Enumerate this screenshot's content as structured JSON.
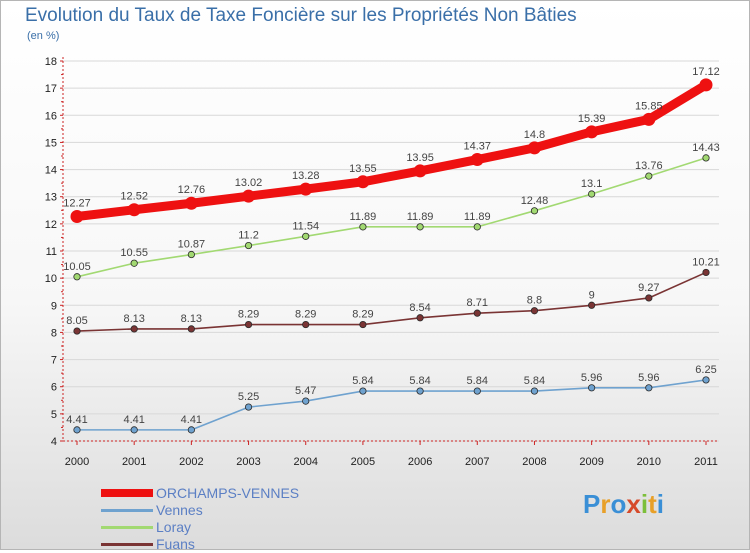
{
  "title": "Evolution du Taux de Taxe Foncière sur les Propriétés Non Bâties",
  "unit_label": "(en %)",
  "brand": {
    "letters": [
      "P",
      "r",
      "o",
      "x",
      "i",
      "t",
      "i"
    ],
    "colors": [
      "#3a8fd6",
      "#e8a028",
      "#3a8fd6",
      "#d64a2a",
      "#7cbf3a",
      "#e8a028",
      "#3a8fd6"
    ]
  },
  "chart_data": {
    "type": "line",
    "title": "Evolution du Taux de Taxe Foncière sur les Propriétés Non Bâties",
    "ylabel": "(en %)",
    "xlabel": "",
    "ylim": [
      4,
      18
    ],
    "yticks": [
      "4",
      "5",
      "6",
      "7",
      "8",
      "9",
      "10",
      "11",
      "12",
      "13",
      "14",
      "15",
      "16",
      "17",
      "18"
    ],
    "categories": [
      "2000",
      "2001",
      "2002",
      "2003",
      "2004",
      "2005",
      "2006",
      "2007",
      "2008",
      "2009",
      "2010",
      "2011"
    ],
    "series": [
      {
        "name": "ORCHAMPS-VENNES",
        "color": "#ee1111",
        "values": [
          12.27,
          12.52,
          12.76,
          13.02,
          13.28,
          13.55,
          13.95,
          14.37,
          14.8,
          15.39,
          15.85,
          17.12
        ],
        "labels": [
          "12.27",
          "12.52",
          "12.76",
          "13.02",
          "13.28",
          "13.55",
          "13.95",
          "14.37",
          "14.8",
          "15.39",
          "15.85",
          "17.12"
        ]
      },
      {
        "name": "Vennes",
        "color": "#6fa2cf",
        "values": [
          4.41,
          4.41,
          4.41,
          5.25,
          5.47,
          5.84,
          5.84,
          5.84,
          5.84,
          5.96,
          5.96,
          6.25
        ],
        "labels": [
          "4.41",
          "4.41",
          "4.41",
          "5.25",
          "5.47",
          "5.84",
          "5.84",
          "5.84",
          "5.84",
          "5.96",
          "5.96",
          "6.25"
        ]
      },
      {
        "name": "Loray",
        "color": "#a2d972",
        "values": [
          10.05,
          10.55,
          10.87,
          11.2,
          11.54,
          11.89,
          11.89,
          11.89,
          12.48,
          13.1,
          13.76,
          14.43
        ],
        "labels": [
          "10.05",
          "10.55",
          "10.87",
          "11.2",
          "11.54",
          "11.89",
          "11.89",
          "11.89",
          "12.48",
          "13.1",
          "13.76",
          "14.43"
        ]
      },
      {
        "name": "Fuans",
        "color": "#7a3434",
        "values": [
          8.05,
          8.13,
          8.13,
          8.29,
          8.29,
          8.29,
          8.54,
          8.71,
          8.8,
          9,
          9.27,
          10.21
        ],
        "labels": [
          "8.05",
          "8.13",
          "8.13",
          "8.29",
          "8.29",
          "8.29",
          "8.54",
          "8.71",
          "8.8",
          "9",
          "9.27",
          "10.21"
        ]
      }
    ],
    "legend_position": "bottom-left"
  }
}
